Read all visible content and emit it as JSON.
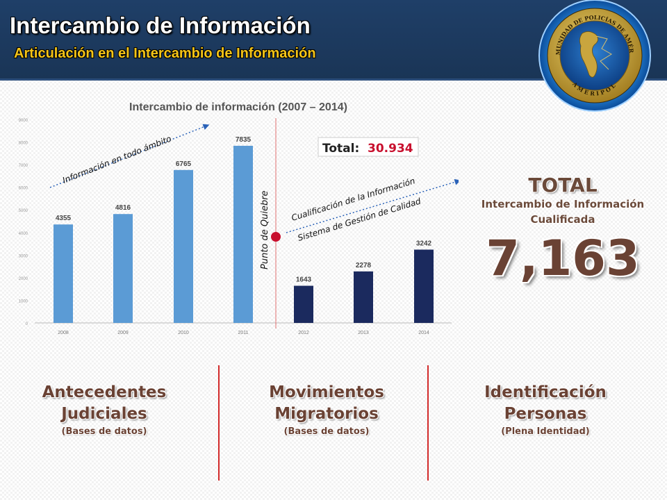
{
  "header": {
    "title": "Intercambio de Información",
    "subtitle": "Articulación en el Intercambio de Información",
    "seal_text": "COMUNIDAD DE POLICÍAS DE AMÉRICA",
    "seal_bottom": "AMERIPOL"
  },
  "chart_data": {
    "type": "bar",
    "title": "Intercambio de información (2007 – 2014)",
    "categories": [
      "2008",
      "2009",
      "2010",
      "2011",
      "2012",
      "2013",
      "2014"
    ],
    "values": [
      4355,
      4816,
      6765,
      7835,
      1643,
      2278,
      3242
    ],
    "ylim": [
      0,
      9000
    ],
    "yticks": [
      0,
      1000,
      2000,
      3000,
      4000,
      5000,
      6000,
      7000,
      8000,
      9000
    ],
    "bar_colors": [
      "#5b9bd5",
      "#5b9bd5",
      "#5b9bd5",
      "#5b9bd5",
      "#1b2a5e",
      "#1b2a5e",
      "#1b2a5e"
    ],
    "grid": false,
    "annotations": {
      "left_arrow": "Información en todo ámbito",
      "right_arrow_1": "Cualificación de la Información",
      "right_arrow_2": "Sistema de Gestión de Calidad",
      "breakpoint": "Punto de Quiebre",
      "total_box_label": "Total:",
      "total_box_value": "30.934"
    }
  },
  "summary": {
    "total_label": "TOTAL",
    "total_sub_1": "Intercambio de Información",
    "total_sub_2": "Cualificada",
    "total_value": "7,163"
  },
  "categories_block": [
    {
      "line1": "Antecedentes",
      "line2": "Judiciales",
      "sub": "(Bases de datos)"
    },
    {
      "line1": "Movimientos",
      "line2": "Migratorios",
      "sub": "(Bases de datos)"
    },
    {
      "line1": "Identificación",
      "line2": "Personas",
      "sub": "(Plena Identidad)"
    }
  ],
  "colors": {
    "header_bg": "#1f3f68",
    "subtitle": "#f5c518",
    "divider": "#d22a2a",
    "accent_brown": "#6a4234"
  }
}
